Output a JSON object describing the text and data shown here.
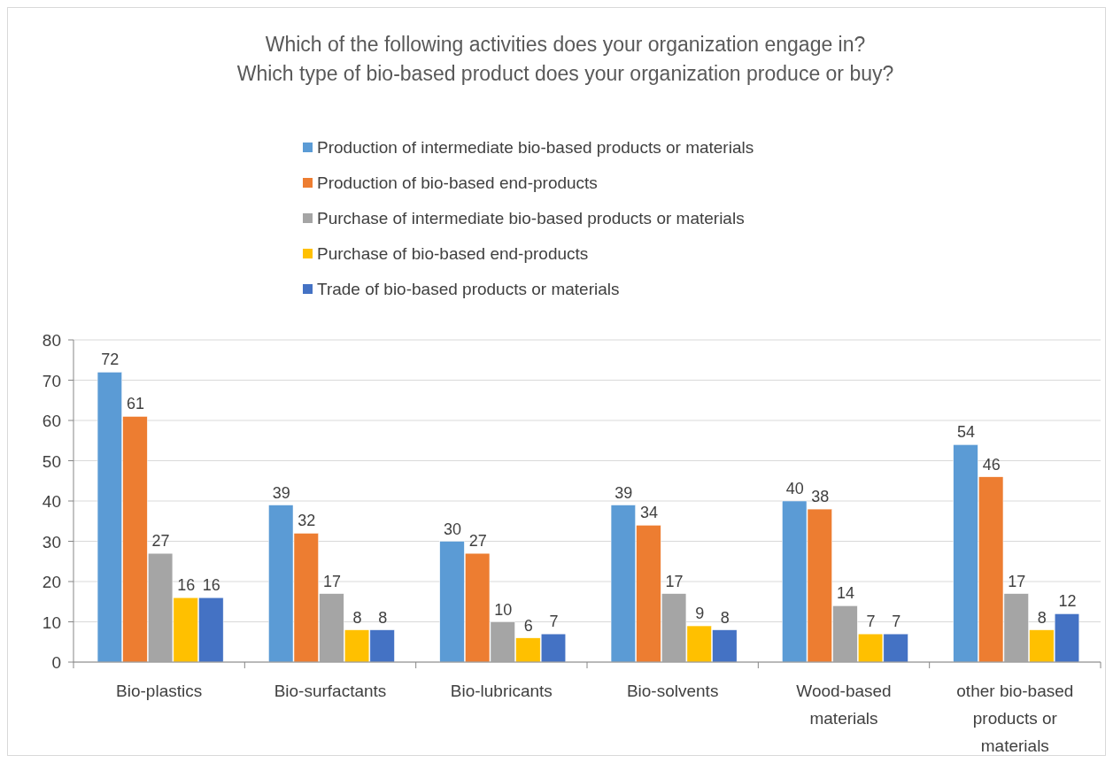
{
  "chart_data": {
    "type": "bar",
    "title": "Which of the following activities does your organization engage in?\nWhich type of bio-based product does your organization produce or buy?",
    "categories": [
      "Bio-plastics",
      "Bio-surfactants",
      "Bio-lubricants",
      "Bio-solvents",
      "Wood-based materials",
      "other bio-based products or materials"
    ],
    "series": [
      {
        "name": "Production of intermediate bio-based products or materials",
        "color": "#5b9bd5",
        "values": [
          72,
          39,
          30,
          39,
          40,
          54
        ]
      },
      {
        "name": "Production of bio-based end-products",
        "color": "#ed7d31",
        "values": [
          61,
          32,
          27,
          34,
          38,
          46
        ]
      },
      {
        "name": "Purchase of intermediate bio-based products or materials",
        "color": "#a5a5a5",
        "values": [
          27,
          17,
          10,
          17,
          14,
          17
        ]
      },
      {
        "name": "Purchase of bio-based end-products",
        "color": "#ffc000",
        "values": [
          16,
          8,
          6,
          9,
          7,
          8
        ]
      },
      {
        "name": "Trade of bio-based products or materials",
        "color": "#4472c4",
        "values": [
          16,
          8,
          7,
          8,
          7,
          12
        ]
      }
    ],
    "ylim": [
      0,
      80
    ],
    "yticks": [
      0,
      10,
      20,
      30,
      40,
      50,
      60,
      70,
      80
    ],
    "grid": "y",
    "legend": "top",
    "data_labels": true
  }
}
